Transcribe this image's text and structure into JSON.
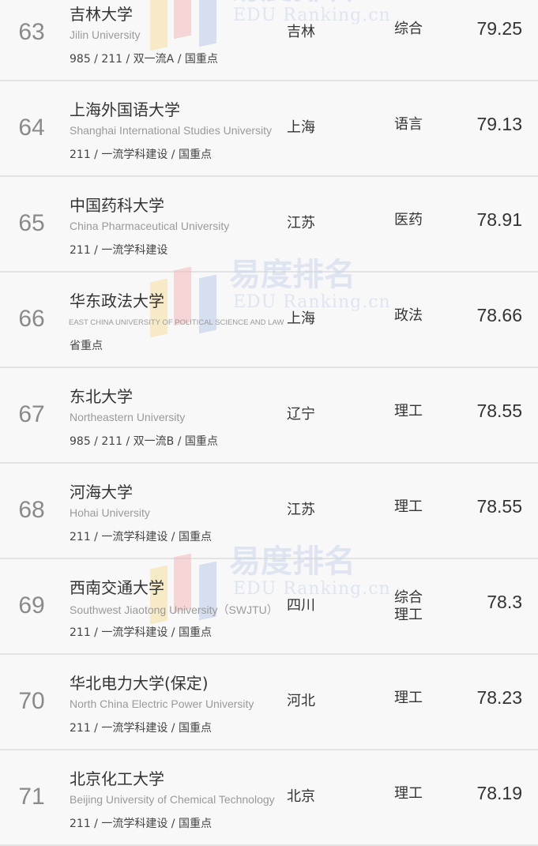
{
  "watermark": {
    "cn": "易度排名",
    "en": "EDU Ranking.cn"
  },
  "rows": [
    {
      "rank": "63",
      "name": "吉林大学",
      "en": "Jilin University",
      "tags": "985 / 211 / 双一流A / 国重点",
      "province": "吉林",
      "type": "综合",
      "score": "79.25"
    },
    {
      "rank": "64",
      "name": "上海外国语大学",
      "en": "Shanghai International Studies University",
      "tags": "211 / 一流学科建设 / 国重点",
      "province": "上海",
      "type": "语言",
      "score": "79.13"
    },
    {
      "rank": "65",
      "name": "中国药科大学",
      "en": "China Pharmaceutical University",
      "tags": "211 / 一流学科建设",
      "province": "江苏",
      "type": "医药",
      "score": "78.91"
    },
    {
      "rank": "66",
      "name": "华东政法大学",
      "en": "EAST CHINA UNIVERSITY OF POLITICAL SCIENCE AND LAW",
      "tags": "省重点",
      "province": "上海",
      "type": "政法",
      "score": "78.66"
    },
    {
      "rank": "67",
      "name": "东北大学",
      "en": "Northeastern University",
      "tags": "985 / 211 / 双一流B / 国重点",
      "province": "辽宁",
      "type": "理工",
      "score": "78.55"
    },
    {
      "rank": "68",
      "name": "河海大学",
      "en": "Hohai University",
      "tags": "211 / 一流学科建设 / 国重点",
      "province": "江苏",
      "type": "理工",
      "score": "78.55"
    },
    {
      "rank": "69",
      "name": "西南交通大学",
      "en": "Southwest Jiaotong University（SWJTU）",
      "tags": "211 / 一流学科建设 / 国重点",
      "province": "四川",
      "type": "综合理工",
      "score": "78.3"
    },
    {
      "rank": "70",
      "name": "华北电力大学(保定)",
      "en": "North China Electric Power University",
      "tags": "211 / 一流学科建设 / 国重点",
      "province": "河北",
      "type": "理工",
      "score": "78.23"
    },
    {
      "rank": "71",
      "name": "北京化工大学",
      "en": "Beijing University of Chemical Technology",
      "tags": "211 / 一流学科建设 / 国重点",
      "province": "北京",
      "type": "理工",
      "score": "78.19"
    }
  ]
}
